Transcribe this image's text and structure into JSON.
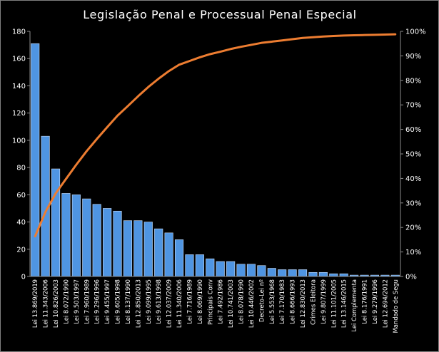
{
  "chart_data": {
    "type": "bar",
    "title": "Legislação Penal e Processual Penal Especial",
    "xlabel": "",
    "ylabel": "",
    "ylim": [
      0,
      180
    ],
    "yticks": [
      "0",
      "20",
      "40",
      "60",
      "80",
      "100",
      "120",
      "140",
      "160",
      "180"
    ],
    "y2lim": [
      0,
      100
    ],
    "y2ticks": [
      "0%",
      "10%",
      "20%",
      "30%",
      "40%",
      "50%",
      "60%",
      "70%",
      "80%",
      "90%",
      "100%"
    ],
    "grid": false,
    "legend": "none",
    "categories": [
      "Lei 13.869/2019",
      "Lei 11.343/2006",
      "Lei 10.826/2003",
      "Lei 8.072/1990",
      "Lei 9.503/1997",
      "Lei 7.960/1989",
      "Lei 9.296/1996",
      "Lei 9.455/1997",
      "Lei 9.605/1998",
      "Lei 8.137/1990",
      "Lei 12.850/2013",
      "Lei 9.099/1995",
      "Lei 9.613/1998",
      "Lei 12.037/2009",
      "Lei 11.340/2006",
      "Lei 7.716/1989",
      "Lei 8.069/1990",
      "Principais Conv",
      "Lei 7.492/1986",
      "Lei 10.741/2003",
      "Lei 8.078/1990",
      "Lei 10.446/2002",
      "Decreto-Lei nº",
      "Lei 5.553/1968",
      "Lei 7.170/1983",
      "Lei 8.666/1993",
      "Lei 12.830/2013",
      "Crimes Eleitora",
      "Lei 9.807/1999",
      "Lei 11.101/2005",
      "Lei 13.146/2015",
      "Lei Complementa",
      "Lei 8.176/1991",
      "Lei 9.279/1996",
      "Lei 12.694/2012",
      "Mandado de Segu"
    ],
    "series": [
      {
        "kind": "bar",
        "axis": "left",
        "color": "#4f95e2",
        "values": [
          171,
          103,
          79,
          61,
          60,
          57,
          53,
          50,
          48,
          41,
          41,
          40,
          35,
          32,
          27,
          16,
          16,
          13,
          11,
          11,
          9,
          9,
          8,
          6,
          5,
          5,
          5,
          3,
          3,
          2,
          2,
          1,
          1,
          1,
          1,
          1
        ]
      },
      {
        "kind": "line",
        "axis": "right",
        "color": "#ed7d31",
        "values": [
          16.4,
          26.3,
          33.9,
          39.8,
          45.6,
          51.1,
          56.1,
          60.9,
          65.6,
          69.5,
          73.5,
          77.3,
          80.7,
          83.8,
          86.4,
          87.9,
          89.4,
          90.7,
          91.7,
          92.8,
          93.7,
          94.5,
          95.3,
          95.8,
          96.3,
          96.8,
          97.3,
          97.6,
          97.9,
          98.1,
          98.3,
          98.4,
          98.5,
          98.6,
          98.7,
          98.8
        ]
      }
    ]
  }
}
